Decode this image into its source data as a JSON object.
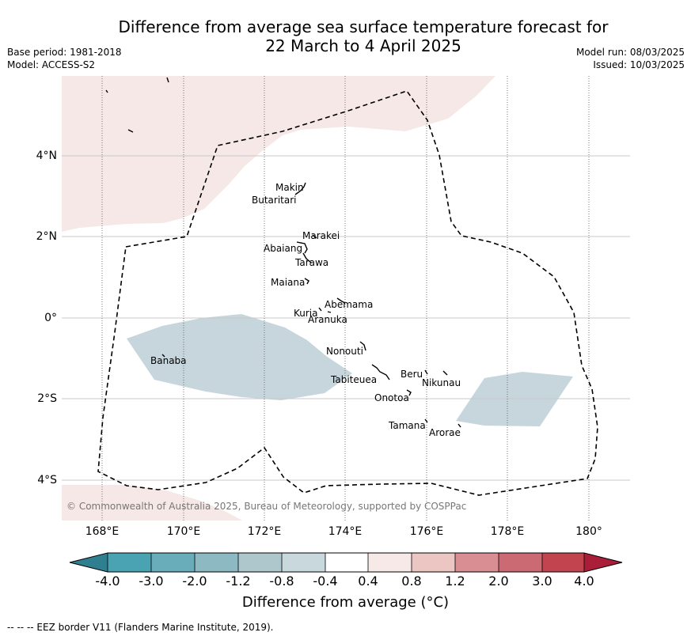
{
  "header": {
    "title_line1": "Difference from average sea surface temperature forecast for",
    "title_line2": "22 March to 4 April 2025",
    "base_period": "Base period: 1981-2018",
    "model": "Model: ACCESS-S2",
    "model_run": "Model run: 08/03/2025",
    "issued": "Issued: 10/03/2025"
  },
  "map": {
    "lat_ticks": [
      "4°N",
      "2°N",
      "0°",
      "2°S",
      "4°S"
    ],
    "lon_ticks": [
      "168°E",
      "170°E",
      "172°E",
      "174°E",
      "176°E",
      "178°E",
      "180°"
    ],
    "copyright": "© Commonwealth of Australia 2025, Bureau of Meteorology, supported by COSPPac",
    "places": [
      {
        "name": "Makin"
      },
      {
        "name": "Butaritari"
      },
      {
        "name": "Marakei"
      },
      {
        "name": "Abaiang"
      },
      {
        "name": "Tarawa"
      },
      {
        "name": "Maiana"
      },
      {
        "name": "Abemama"
      },
      {
        "name": "Kuria"
      },
      {
        "name": "Aranuka"
      },
      {
        "name": "Banaba"
      },
      {
        "name": "Nonouti"
      },
      {
        "name": "Beru"
      },
      {
        "name": "Nikunau"
      },
      {
        "name": "Tabiteuea"
      },
      {
        "name": "Onotoa"
      },
      {
        "name": "Tamana"
      },
      {
        "name": "Arorae"
      }
    ],
    "colors": {
      "warm_light": "#f5e8e7",
      "cool_light": "#c6d6dc",
      "grid": "#c8c8c8",
      "eez": "#000000"
    }
  },
  "colorbar": {
    "ticks": [
      "-4.0",
      "-3.0",
      "-2.0",
      "-1.2",
      "-0.8",
      "-0.4",
      "0.4",
      "0.8",
      "1.2",
      "2.0",
      "3.0",
      "4.0"
    ],
    "colors": [
      "#2f7f90",
      "#49a3b2",
      "#6aadba",
      "#8db9c3",
      "#aec7cd",
      "#c8d8dd",
      "#ffffff",
      "#f6e9e7",
      "#ecc6c3",
      "#d98e93",
      "#cc6a73",
      "#c2444f",
      "#ab1e3a"
    ],
    "label": "Difference from average (°C)"
  },
  "footer": {
    "eez_note": "--  --  -- EEZ border V11 (Flanders Marine Institute, 2019)."
  }
}
